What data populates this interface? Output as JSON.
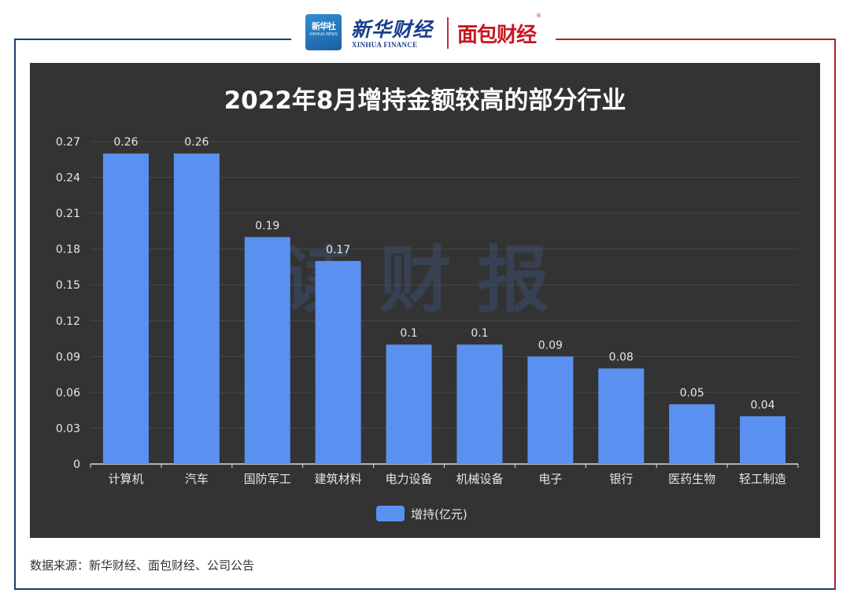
{
  "header": {
    "xinhua_badge_text": "新华社",
    "xinhua_badge_sub": "XINHUA NEWS",
    "brand_cn": "新华财经",
    "brand_en": "XINHUA FINANCE",
    "partner_cn": "面包财经",
    "partner_mark": "®"
  },
  "watermark": "读 财 报",
  "source_text": "数据来源：新华财经、面包财经、公司公告",
  "colors": {
    "bar": "#5a91f1",
    "panel_bg": "#333333",
    "grid": "#484848",
    "text": "#e6e6e6",
    "frame_left": "#1d3f6e",
    "frame_right": "#a8252c"
  },
  "chart_data": {
    "type": "bar",
    "title": "2022年8月增持金额较高的部分行业",
    "categories": [
      "计算机",
      "汽车",
      "国防军工",
      "建筑材料",
      "电力设备",
      "机械设备",
      "电子",
      "银行",
      "医药生物",
      "轻工制造"
    ],
    "series": [
      {
        "name": "增持(亿元)",
        "values": [
          0.26,
          0.26,
          0.19,
          0.17,
          0.1,
          0.1,
          0.09,
          0.08,
          0.05,
          0.04
        ],
        "labels": [
          "0.26",
          "0.26",
          "0.19",
          "0.17",
          "0.1",
          "0.1",
          "0.09",
          "0.08",
          "0.05",
          "0.04"
        ]
      }
    ],
    "y_ticks": [
      "0",
      "0.03",
      "0.06",
      "0.09",
      "0.12",
      "0.15",
      "0.18",
      "0.21",
      "0.24",
      "0.27"
    ],
    "ylim": [
      0,
      0.27
    ],
    "grid": true,
    "legend_position": "bottom-center"
  }
}
